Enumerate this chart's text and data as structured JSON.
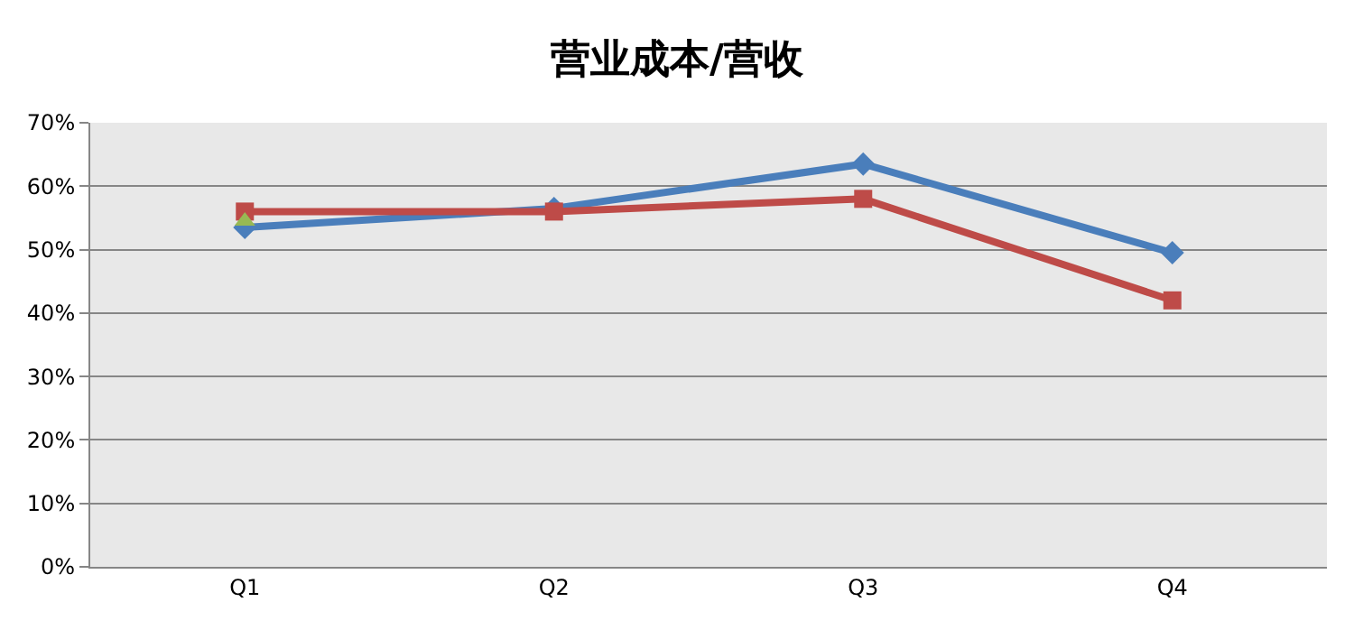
{
  "chart_data": {
    "type": "line",
    "title": "营业成本/营收",
    "categories": [
      "Q1",
      "Q2",
      "Q3",
      "Q4"
    ],
    "series": [
      {
        "color": "#4a7ebb",
        "values": [
          53.5,
          56.5,
          63.5,
          49.5
        ],
        "marker": "diamond"
      },
      {
        "color": "#be4b48",
        "values": [
          56,
          56,
          58,
          42
        ],
        "marker": "square"
      },
      {
        "color": "#98b954",
        "values": [
          54.5,
          null,
          null,
          null
        ],
        "marker": "triangle"
      }
    ],
    "ylim": [
      0,
      70
    ],
    "yticks": [
      {
        "value": 0,
        "label": "0%"
      },
      {
        "value": 10,
        "label": "10%"
      },
      {
        "value": 20,
        "label": "20%"
      },
      {
        "value": 30,
        "label": "30%"
      },
      {
        "value": 40,
        "label": "40%"
      },
      {
        "value": 50,
        "label": "50%"
      },
      {
        "value": 60,
        "label": "60%"
      },
      {
        "value": 70,
        "label": "70%"
      }
    ],
    "grid": "y",
    "line_style": "solid"
  }
}
